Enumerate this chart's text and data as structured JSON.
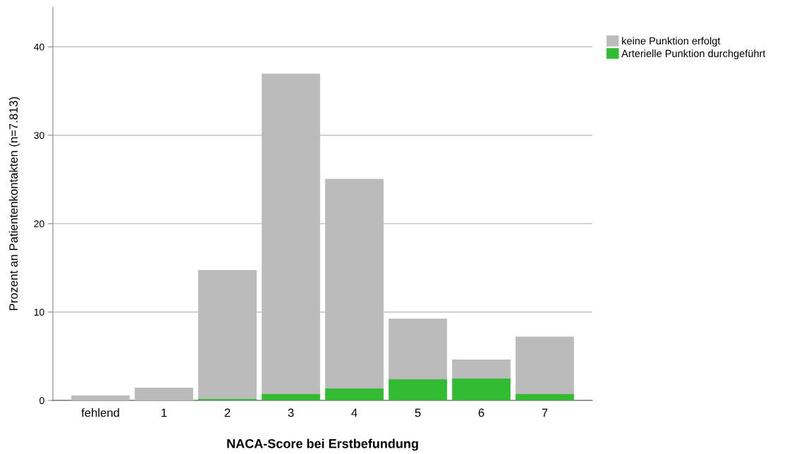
{
  "chart_data": {
    "type": "bar",
    "stacked": true,
    "xlabel": "NACA-Score bei Erstbefundung",
    "ylabel": "Prozent an Patientenkontakten (n=7.813)",
    "categories": [
      "fehlend",
      "1",
      "2",
      "3",
      "4",
      "5",
      "6",
      "7"
    ],
    "series": [
      {
        "name": "Arterielle Punktion durchgeführt",
        "color": "#33bb33",
        "values": [
          0,
          0,
          0.16,
          0.72,
          1.36,
          2.4,
          2.47,
          0.72
        ]
      },
      {
        "name": "keine Punktion erfolgt",
        "color": "#bbbbbb",
        "values": [
          0.56,
          1.44,
          14.6,
          36.25,
          23.7,
          6.85,
          2.15,
          6.5
        ]
      }
    ],
    "ylim": [
      0,
      44.5
    ],
    "yticks": [
      0,
      10,
      20,
      30,
      40
    ],
    "grid": "y",
    "legend": "top right"
  }
}
